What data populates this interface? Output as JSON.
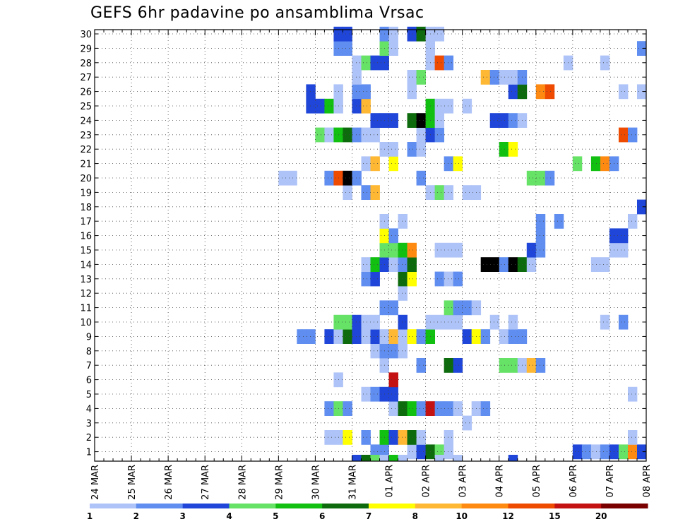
{
  "chart_data": {
    "type": "heatmap",
    "title": "GEFS 6hr padavine po ansamblima Vrsac",
    "xlabel": "",
    "ylabel": "",
    "x_start": "24 MAR 00Z",
    "x_step_hours": 6,
    "x_steps": 60,
    "x_tick_labels": [
      "24 MAR",
      "25 MAR",
      "26 MAR",
      "27 MAR",
      "28 MAR",
      "29 MAR",
      "30 MAR",
      "31 MAR",
      "01 APR",
      "02 APR",
      "03 APR",
      "04 APR",
      "05 APR",
      "06 APR",
      "07 APR",
      "08 APR"
    ],
    "y_tick_labels": [
      "1",
      "2",
      "3",
      "4",
      "5",
      "6",
      "7",
      "8",
      "9",
      "10",
      "11",
      "12",
      "13",
      "14",
      "15",
      "16",
      "17",
      "18",
      "19",
      "20",
      "21",
      "22",
      "23",
      "24",
      "25",
      "26",
      "27",
      "28",
      "29",
      "30"
    ],
    "ylim": [
      0,
      30
    ],
    "grid": true,
    "legend_placement": "bottom",
    "legend": {
      "labels": [
        "1",
        "2",
        "3",
        "4",
        "5",
        "6",
        "7",
        "8",
        "10",
        "12",
        "15",
        "20"
      ],
      "colors": [
        "#aec3f7",
        "#5f8df0",
        "#1f46d8",
        "#66e266",
        "#11c011",
        "#0d6b0d",
        "#ffff00",
        "#ffb833",
        "#ff8a11",
        "#ee4a00",
        "#c41111",
        "#7a0000"
      ]
    },
    "cells": [
      [
        1,
        30,
        2
      ],
      [
        1,
        31,
        2
      ],
      [
        1,
        34,
        1
      ],
      [
        1,
        35,
        3
      ],
      [
        1,
        36,
        6
      ],
      [
        1,
        37,
        4
      ],
      [
        1,
        38,
        1
      ],
      [
        1,
        52,
        3
      ],
      [
        1,
        53,
        2
      ],
      [
        1,
        54,
        1
      ],
      [
        1,
        55,
        2
      ],
      [
        1,
        56,
        3
      ],
      [
        1,
        57,
        4
      ],
      [
        1,
        58,
        9
      ],
      [
        1,
        59,
        3
      ],
      [
        2,
        25,
        1
      ],
      [
        2,
        26,
        1
      ],
      [
        2,
        27,
        7
      ],
      [
        2,
        29,
        2
      ],
      [
        2,
        31,
        5
      ],
      [
        2,
        32,
        3
      ],
      [
        2,
        33,
        8
      ],
      [
        2,
        34,
        6
      ],
      [
        2,
        35,
        1
      ],
      [
        2,
        38,
        1
      ],
      [
        2,
        58,
        1
      ],
      [
        3,
        40,
        1
      ],
      [
        4,
        25,
        2
      ],
      [
        4,
        26,
        4
      ],
      [
        4,
        27,
        2
      ],
      [
        4,
        32,
        1
      ],
      [
        4,
        33,
        6
      ],
      [
        4,
        34,
        5
      ],
      [
        4,
        35,
        2
      ],
      [
        4,
        36,
        11
      ],
      [
        4,
        37,
        2
      ],
      [
        4,
        38,
        2
      ],
      [
        4,
        39,
        1
      ],
      [
        4,
        41,
        1
      ],
      [
        4,
        42,
        2
      ],
      [
        5,
        29,
        1
      ],
      [
        5,
        30,
        2
      ],
      [
        5,
        31,
        3
      ],
      [
        5,
        32,
        3
      ],
      [
        5,
        58,
        1
      ],
      [
        6,
        26,
        1
      ],
      [
        6,
        32,
        11
      ],
      [
        7,
        31,
        1
      ],
      [
        7,
        35,
        2
      ],
      [
        7,
        38,
        6
      ],
      [
        7,
        39,
        3
      ],
      [
        7,
        44,
        4
      ],
      [
        7,
        45,
        4
      ],
      [
        7,
        46,
        1
      ],
      [
        7,
        47,
        8
      ],
      [
        7,
        48,
        2
      ],
      [
        8,
        30,
        1
      ],
      [
        8,
        31,
        2
      ],
      [
        8,
        32,
        2
      ],
      [
        8,
        33,
        1
      ],
      [
        9,
        22,
        2
      ],
      [
        9,
        23,
        2
      ],
      [
        9,
        25,
        3
      ],
      [
        9,
        26,
        1
      ],
      [
        9,
        27,
        6
      ],
      [
        9,
        28,
        3
      ],
      [
        9,
        29,
        1
      ],
      [
        9,
        30,
        3
      ],
      [
        9,
        31,
        1
      ],
      [
        9,
        32,
        8
      ],
      [
        9,
        33,
        1
      ],
      [
        9,
        34,
        7
      ],
      [
        9,
        35,
        2
      ],
      [
        9,
        36,
        5
      ],
      [
        9,
        40,
        3
      ],
      [
        9,
        41,
        7
      ],
      [
        9,
        42,
        2
      ],
      [
        9,
        44,
        1
      ],
      [
        9,
        45,
        2
      ],
      [
        9,
        46,
        2
      ],
      [
        10,
        26,
        4
      ],
      [
        10,
        27,
        4
      ],
      [
        10,
        28,
        3
      ],
      [
        10,
        29,
        1
      ],
      [
        10,
        30,
        1
      ],
      [
        10,
        33,
        3
      ],
      [
        10,
        36,
        1
      ],
      [
        10,
        37,
        1
      ],
      [
        10,
        38,
        1
      ],
      [
        10,
        39,
        1
      ],
      [
        10,
        43,
        1
      ],
      [
        10,
        45,
        1
      ],
      [
        10,
        55,
        1
      ],
      [
        10,
        57,
        2
      ],
      [
        11,
        31,
        2
      ],
      [
        11,
        32,
        2
      ],
      [
        11,
        38,
        4
      ],
      [
        11,
        39,
        2
      ],
      [
        11,
        40,
        2
      ],
      [
        11,
        41,
        1
      ],
      [
        12,
        33,
        1
      ],
      [
        13,
        29,
        2
      ],
      [
        13,
        30,
        3
      ],
      [
        13,
        33,
        6
      ],
      [
        13,
        34,
        7
      ],
      [
        13,
        37,
        2
      ],
      [
        13,
        38,
        1
      ],
      [
        13,
        39,
        2
      ],
      [
        14,
        29,
        1
      ],
      [
        14,
        30,
        5
      ],
      [
        14,
        31,
        3
      ],
      [
        14,
        32,
        1
      ],
      [
        14,
        33,
        2
      ],
      [
        14,
        34,
        6
      ],
      [
        14,
        42,
        14
      ],
      [
        14,
        43,
        14
      ],
      [
        14,
        44,
        2
      ],
      [
        14,
        45,
        15
      ],
      [
        14,
        46,
        6
      ],
      [
        14,
        47,
        1
      ],
      [
        14,
        54,
        1
      ],
      [
        14,
        55,
        1
      ],
      [
        15,
        31,
        4
      ],
      [
        15,
        32,
        4
      ],
      [
        15,
        33,
        5
      ],
      [
        15,
        34,
        9
      ],
      [
        15,
        37,
        1
      ],
      [
        15,
        38,
        1
      ],
      [
        15,
        39,
        1
      ],
      [
        15,
        47,
        3
      ],
      [
        15,
        48,
        2
      ],
      [
        15,
        56,
        1
      ],
      [
        15,
        57,
        1
      ],
      [
        16,
        31,
        7
      ],
      [
        16,
        32,
        2
      ],
      [
        16,
        48,
        2
      ],
      [
        16,
        56,
        3
      ],
      [
        16,
        57,
        3
      ],
      [
        17,
        31,
        1
      ],
      [
        17,
        33,
        1
      ],
      [
        17,
        48,
        2
      ],
      [
        17,
        50,
        2
      ],
      [
        17,
        58,
        1
      ],
      [
        18,
        59,
        3
      ],
      [
        19,
        27,
        1
      ],
      [
        19,
        29,
        2
      ],
      [
        19,
        30,
        8
      ],
      [
        19,
        36,
        1
      ],
      [
        19,
        37,
        4
      ],
      [
        19,
        38,
        1
      ],
      [
        19,
        40,
        1
      ],
      [
        19,
        41,
        1
      ],
      [
        20,
        20,
        1
      ],
      [
        20,
        21,
        1
      ],
      [
        20,
        25,
        2
      ],
      [
        20,
        26,
        10
      ],
      [
        20,
        27,
        13
      ],
      [
        20,
        28,
        2
      ],
      [
        20,
        35,
        2
      ],
      [
        20,
        47,
        4
      ],
      [
        20,
        48,
        4
      ],
      [
        20,
        49,
        2
      ],
      [
        21,
        29,
        1
      ],
      [
        21,
        30,
        8
      ],
      [
        21,
        32,
        7
      ],
      [
        21,
        38,
        2
      ],
      [
        21,
        39,
        7
      ],
      [
        21,
        52,
        4
      ],
      [
        21,
        54,
        5
      ],
      [
        21,
        55,
        9
      ],
      [
        21,
        56,
        2
      ],
      [
        22,
        31,
        1
      ],
      [
        22,
        32,
        1
      ],
      [
        22,
        34,
        2
      ],
      [
        22,
        35,
        1
      ],
      [
        22,
        44,
        5
      ],
      [
        22,
        45,
        7
      ],
      [
        23,
        24,
        4
      ],
      [
        23,
        25,
        1
      ],
      [
        23,
        26,
        5
      ],
      [
        23,
        27,
        6
      ],
      [
        23,
        28,
        2
      ],
      [
        23,
        29,
        1
      ],
      [
        23,
        30,
        1
      ],
      [
        23,
        35,
        1
      ],
      [
        23,
        36,
        3
      ],
      [
        23,
        37,
        2
      ],
      [
        23,
        57,
        10
      ],
      [
        23,
        58,
        2
      ],
      [
        24,
        30,
        3
      ],
      [
        24,
        31,
        3
      ],
      [
        24,
        32,
        3
      ],
      [
        24,
        34,
        6
      ],
      [
        24,
        35,
        13
      ],
      [
        24,
        36,
        5
      ],
      [
        24,
        37,
        1
      ],
      [
        24,
        43,
        3
      ],
      [
        24,
        44,
        3
      ],
      [
        24,
        45,
        2
      ],
      [
        24,
        46,
        1
      ],
      [
        25,
        23,
        3
      ],
      [
        25,
        24,
        3
      ],
      [
        25,
        25,
        5
      ],
      [
        25,
        26,
        1
      ],
      [
        25,
        28,
        3
      ],
      [
        25,
        29,
        8
      ],
      [
        25,
        36,
        5
      ],
      [
        25,
        37,
        1
      ],
      [
        25,
        38,
        1
      ],
      [
        25,
        40,
        1
      ],
      [
        26,
        23,
        3
      ],
      [
        26,
        26,
        1
      ],
      [
        26,
        28,
        2
      ],
      [
        26,
        29,
        2
      ],
      [
        26,
        34,
        1
      ],
      [
        26,
        45,
        3
      ],
      [
        26,
        46,
        6
      ],
      [
        26,
        48,
        9
      ],
      [
        26,
        49,
        10
      ],
      [
        26,
        57,
        1
      ],
      [
        26,
        59,
        1
      ],
      [
        27,
        28,
        1
      ],
      [
        27,
        34,
        1
      ],
      [
        27,
        35,
        4
      ],
      [
        27,
        42,
        8
      ],
      [
        27,
        43,
        2
      ],
      [
        27,
        44,
        1
      ],
      [
        27,
        45,
        1
      ],
      [
        27,
        46,
        2
      ],
      [
        28,
        28,
        1
      ],
      [
        28,
        29,
        4
      ],
      [
        28,
        30,
        3
      ],
      [
        28,
        31,
        3
      ],
      [
        28,
        36,
        1
      ],
      [
        28,
        37,
        10
      ],
      [
        28,
        38,
        2
      ],
      [
        28,
        51,
        1
      ],
      [
        28,
        55,
        1
      ],
      [
        29,
        26,
        2
      ],
      [
        29,
        27,
        2
      ],
      [
        29,
        31,
        4
      ],
      [
        29,
        32,
        1
      ],
      [
        29,
        36,
        1
      ],
      [
        29,
        59,
        2
      ],
      [
        30,
        26,
        3
      ],
      [
        30,
        27,
        3
      ],
      [
        30,
        31,
        2
      ],
      [
        30,
        32,
        1
      ],
      [
        30,
        34,
        3
      ],
      [
        30,
        35,
        6
      ],
      [
        30,
        36,
        1
      ],
      [
        30,
        37,
        1
      ]
    ],
    "bottom_row_cells": [
      [
        28,
        3
      ],
      [
        29,
        6
      ],
      [
        30,
        4
      ],
      [
        31,
        1
      ],
      [
        32,
        5
      ],
      [
        33,
        1
      ],
      [
        37,
        1
      ],
      [
        39,
        1
      ],
      [
        45,
        3
      ]
    ]
  }
}
